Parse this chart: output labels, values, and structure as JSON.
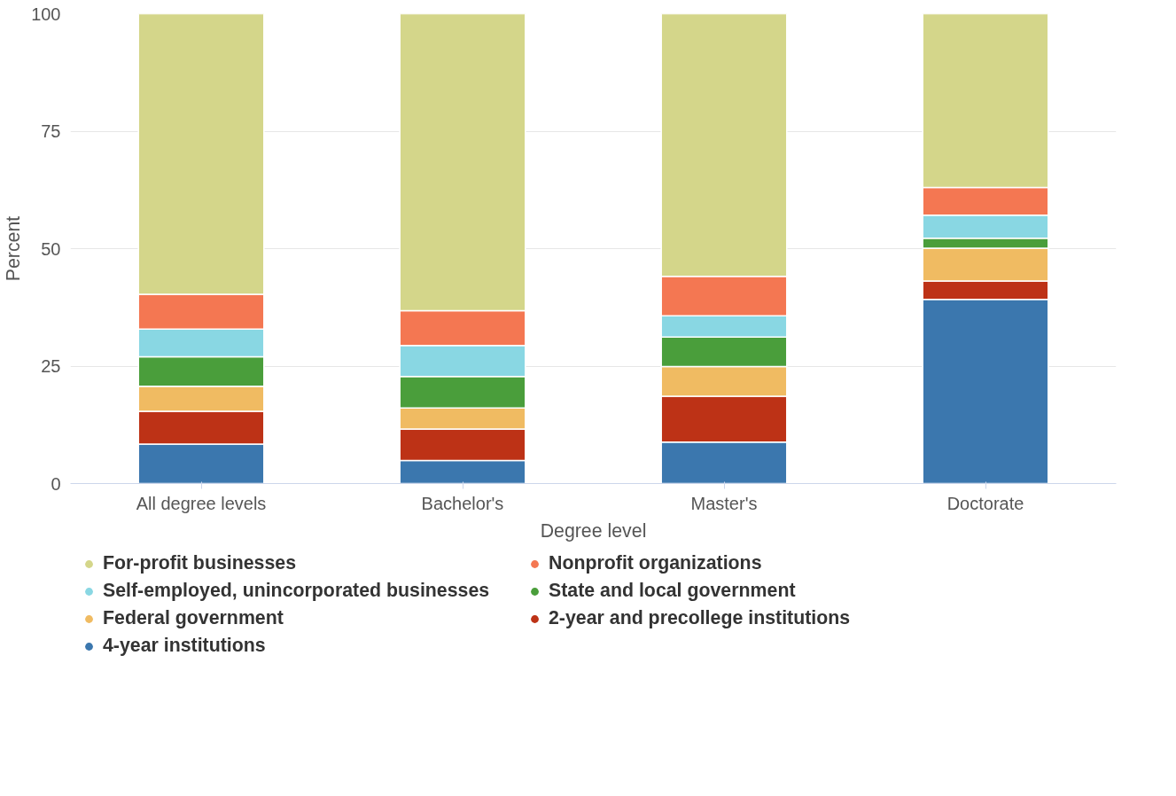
{
  "chart_data": {
    "type": "bar",
    "stacked": true,
    "xlabel": "Degree level",
    "ylabel": "Percent",
    "categories": [
      "All degree levels",
      "Bachelor's",
      "Master's",
      "Doctorate"
    ],
    "ylim": [
      0,
      100
    ],
    "yticks": [
      0,
      25,
      50,
      75,
      100
    ],
    "grid": "y",
    "legend": "bottom",
    "series": [
      {
        "name": "4-year institutions",
        "color": "#3b77ae",
        "values": [
          8.4,
          4.9,
          8.8,
          39.2
        ]
      },
      {
        "name": "2-year and precollege institutions",
        "color": "#bd3216",
        "values": [
          7.0,
          6.7,
          9.8,
          3.9
        ]
      },
      {
        "name": "Federal government",
        "color": "#f0bb62",
        "values": [
          5.3,
          4.5,
          6.3,
          7.0
        ]
      },
      {
        "name": "State and local government",
        "color": "#4a9e3b",
        "values": [
          6.3,
          6.7,
          6.3,
          2.1
        ]
      },
      {
        "name": "Self-employed, unincorporated businesses",
        "color": "#89d7e3",
        "values": [
          5.9,
          6.6,
          4.5,
          4.9
        ]
      },
      {
        "name": "Nonprofit organizations",
        "color": "#f47752",
        "values": [
          7.4,
          7.4,
          8.4,
          5.9
        ]
      },
      {
        "name": "For-profit businesses",
        "color": "#d4d68a",
        "values": [
          59.7,
          63.2,
          55.9,
          37.0
        ]
      }
    ]
  }
}
